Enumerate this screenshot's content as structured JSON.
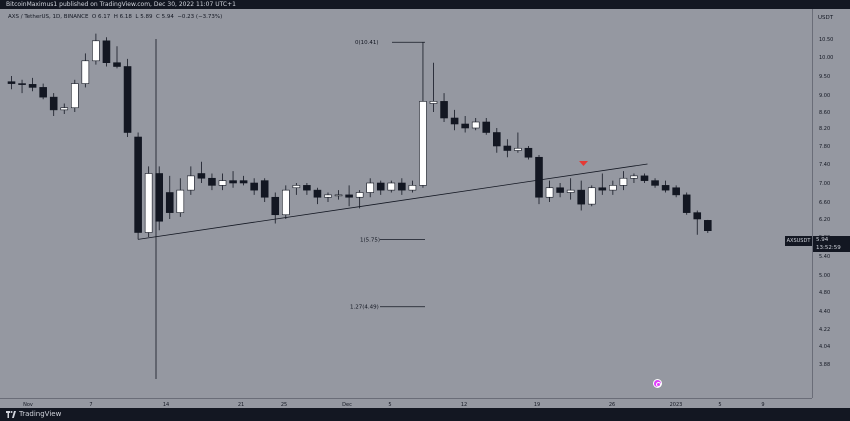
{
  "header": {
    "publish_text": "BitcoinMaximus1 published on TradingView.com, Dec 30, 2022 11:07 UTC+1"
  },
  "legend": {
    "symbol": "AXS / TetherUS, 1D, BINANCE",
    "o": "O",
    "o_val": "6.17",
    "h": "H",
    "h_val": "6.18",
    "l": "L",
    "l_val": "5.89",
    "c": "C",
    "c_val": "5.94",
    "change": "−0.23 (−3.73%)"
  },
  "price_axis": {
    "currency": "USDT",
    "ticks": [
      "10.50",
      "10.00",
      "9.50",
      "9.00",
      "8.60",
      "8.20",
      "7.80",
      "7.40",
      "7.00",
      "6.60",
      "6.20",
      "5.80",
      "5.40",
      "5.00",
      "4.80",
      "4.40",
      "4.22",
      "4.04",
      "3.88"
    ],
    "last_symbol": "AXSUSDT",
    "last_price": "5.94",
    "countdown": "13:52:59"
  },
  "time_axis": {
    "labels": [
      "Nov",
      "7",
      "14",
      "21",
      "25",
      "Dec",
      "5",
      "12",
      "19",
      "26",
      "2023",
      "5",
      "9"
    ]
  },
  "fib_levels": [
    {
      "label": "0(10.41)"
    },
    {
      "label": "1(5.75)"
    },
    {
      "label": "1.27(4.49)"
    }
  ],
  "footer": {
    "brand": "TradingView"
  },
  "colors": {
    "background": "#9598a1",
    "bull_candle": "#ffffff",
    "bear_candle": "#131722",
    "marker": "#e53935",
    "event": "#e040fb"
  },
  "chart_data": {
    "type": "candlestick",
    "symbol": "AXS / TetherUS",
    "interval": "1D",
    "ylim": [
      3.88,
      10.7
    ],
    "candles": [
      {
        "o": 9.35,
        "h": 9.5,
        "l": 9.15,
        "c": 9.3
      },
      {
        "o": 9.3,
        "h": 9.4,
        "l": 9.05,
        "c": 9.28
      },
      {
        "o": 9.28,
        "h": 9.45,
        "l": 9.1,
        "c": 9.2
      },
      {
        "o": 9.2,
        "h": 9.3,
        "l": 8.9,
        "c": 8.95
      },
      {
        "o": 8.95,
        "h": 9.05,
        "l": 8.5,
        "c": 8.65
      },
      {
        "o": 8.65,
        "h": 8.8,
        "l": 8.55,
        "c": 8.7
      },
      {
        "o": 8.7,
        "h": 9.4,
        "l": 8.6,
        "c": 9.3
      },
      {
        "o": 9.3,
        "h": 10.1,
        "l": 9.2,
        "c": 9.9
      },
      {
        "o": 9.9,
        "h": 10.65,
        "l": 9.8,
        "c": 10.45
      },
      {
        "o": 10.45,
        "h": 10.55,
        "l": 9.75,
        "c": 9.85
      },
      {
        "o": 9.85,
        "h": 10.3,
        "l": 9.7,
        "c": 9.75
      },
      {
        "o": 9.75,
        "h": 9.95,
        "l": 8.0,
        "c": 8.1
      },
      {
        "o": 8.0,
        "h": 8.1,
        "l": 5.75,
        "c": 5.9
      },
      {
        "o": 5.9,
        "h": 7.35,
        "l": 5.8,
        "c": 7.2
      },
      {
        "o": 7.2,
        "h": 7.35,
        "l": 5.95,
        "c": 6.15
      },
      {
        "o": 6.8,
        "h": 7.15,
        "l": 6.2,
        "c": 6.35
      },
      {
        "o": 6.35,
        "h": 7.1,
        "l": 6.25,
        "c": 6.85
      },
      {
        "o": 6.85,
        "h": 7.35,
        "l": 6.75,
        "c": 7.15
      },
      {
        "o": 7.2,
        "h": 7.45,
        "l": 7.0,
        "c": 7.1
      },
      {
        "o": 7.1,
        "h": 7.2,
        "l": 6.85,
        "c": 6.95
      },
      {
        "o": 6.95,
        "h": 7.2,
        "l": 6.85,
        "c": 7.05
      },
      {
        "o": 7.05,
        "h": 7.25,
        "l": 6.9,
        "c": 7.0
      },
      {
        "o": 7.05,
        "h": 7.15,
        "l": 6.95,
        "c": 7.0
      },
      {
        "o": 7.0,
        "h": 7.1,
        "l": 6.75,
        "c": 6.85
      },
      {
        "o": 7.05,
        "h": 7.1,
        "l": 6.6,
        "c": 6.7
      },
      {
        "o": 6.7,
        "h": 6.8,
        "l": 6.1,
        "c": 6.3
      },
      {
        "o": 6.3,
        "h": 6.95,
        "l": 6.2,
        "c": 6.85
      },
      {
        "o": 6.9,
        "h": 7.0,
        "l": 6.75,
        "c": 6.95
      },
      {
        "o": 6.95,
        "h": 7.0,
        "l": 6.75,
        "c": 6.85
      },
      {
        "o": 6.85,
        "h": 6.9,
        "l": 6.55,
        "c": 6.7
      },
      {
        "o": 6.7,
        "h": 6.8,
        "l": 6.6,
        "c": 6.75
      },
      {
        "o": 6.75,
        "h": 6.85,
        "l": 6.65,
        "c": 6.75
      },
      {
        "o": 6.75,
        "h": 6.95,
        "l": 6.5,
        "c": 6.7
      },
      {
        "o": 6.7,
        "h": 6.85,
        "l": 6.45,
        "c": 6.8
      },
      {
        "o": 6.8,
        "h": 7.1,
        "l": 6.7,
        "c": 7.0
      },
      {
        "o": 7.0,
        "h": 7.05,
        "l": 6.75,
        "c": 6.85
      },
      {
        "o": 6.85,
        "h": 7.05,
        "l": 6.8,
        "c": 7.0
      },
      {
        "o": 7.0,
        "h": 7.1,
        "l": 6.75,
        "c": 6.85
      },
      {
        "o": 6.85,
        "h": 7.05,
        "l": 6.8,
        "c": 6.95
      },
      {
        "o": 6.95,
        "h": 10.41,
        "l": 6.9,
        "c": 8.85
      },
      {
        "o": 8.8,
        "h": 9.85,
        "l": 8.6,
        "c": 8.85
      },
      {
        "o": 8.85,
        "h": 9.05,
        "l": 8.35,
        "c": 8.45
      },
      {
        "o": 8.45,
        "h": 8.65,
        "l": 8.15,
        "c": 8.3
      },
      {
        "o": 8.3,
        "h": 8.5,
        "l": 8.1,
        "c": 8.2
      },
      {
        "o": 8.2,
        "h": 8.45,
        "l": 8.15,
        "c": 8.35
      },
      {
        "o": 8.35,
        "h": 8.45,
        "l": 8.05,
        "c": 8.1
      },
      {
        "o": 8.1,
        "h": 8.2,
        "l": 7.65,
        "c": 7.8
      },
      {
        "o": 7.8,
        "h": 7.95,
        "l": 7.55,
        "c": 7.7
      },
      {
        "o": 7.7,
        "h": 8.1,
        "l": 7.65,
        "c": 7.75
      },
      {
        "o": 7.75,
        "h": 7.8,
        "l": 7.5,
        "c": 7.55
      },
      {
        "o": 7.55,
        "h": 7.6,
        "l": 6.55,
        "c": 6.7
      },
      {
        "o": 6.7,
        "h": 7.05,
        "l": 6.6,
        "c": 6.9
      },
      {
        "o": 6.9,
        "h": 7.0,
        "l": 6.7,
        "c": 6.8
      },
      {
        "o": 6.8,
        "h": 7.1,
        "l": 6.65,
        "c": 6.85
      },
      {
        "o": 6.85,
        "h": 7.05,
        "l": 6.4,
        "c": 6.55
      },
      {
        "o": 6.55,
        "h": 6.95,
        "l": 6.5,
        "c": 6.9
      },
      {
        "o": 6.9,
        "h": 7.2,
        "l": 6.75,
        "c": 6.85
      },
      {
        "o": 6.85,
        "h": 7.05,
        "l": 6.75,
        "c": 6.95
      },
      {
        "o": 6.95,
        "h": 7.25,
        "l": 6.85,
        "c": 7.1
      },
      {
        "o": 7.1,
        "h": 7.2,
        "l": 7.0,
        "c": 7.15
      },
      {
        "o": 7.15,
        "h": 7.2,
        "l": 7.0,
        "c": 7.05
      },
      {
        "o": 7.05,
        "h": 7.1,
        "l": 6.9,
        "c": 6.95
      },
      {
        "o": 6.95,
        "h": 7.05,
        "l": 6.8,
        "c": 6.85
      },
      {
        "o": 6.9,
        "h": 6.95,
        "l": 6.7,
        "c": 6.75
      },
      {
        "o": 6.75,
        "h": 6.8,
        "l": 6.3,
        "c": 6.35
      },
      {
        "o": 6.35,
        "h": 6.4,
        "l": 5.85,
        "c": 6.2
      },
      {
        "o": 6.17,
        "h": 6.18,
        "l": 5.89,
        "c": 5.94
      }
    ],
    "trendline": {
      "start": 5.75,
      "end": 7.4
    },
    "fib_prices": [
      10.41,
      5.75,
      4.49
    ]
  }
}
